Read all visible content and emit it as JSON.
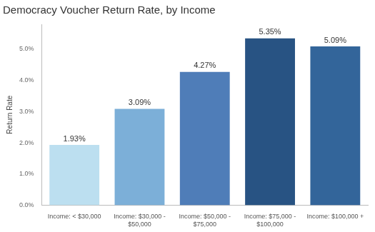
{
  "chart_data": {
    "type": "bar",
    "title": "Democracy Voucher Return Rate, by Income",
    "y_label": "Return Rate",
    "categories": [
      "Income: < $30,000",
      "Income: $30,000 - $50,000",
      "Income: $50,000 - $75,000",
      "Income: $75,000 - $100,000",
      "Income: $100,000 +"
    ],
    "values": [
      1.93,
      3.09,
      4.27,
      5.35,
      5.09
    ],
    "value_labels": [
      "1.93%",
      "3.09%",
      "4.27%",
      "5.35%",
      "5.09%"
    ],
    "colors": [
      "#bcdff0",
      "#7cafd8",
      "#4f7db8",
      "#285383",
      "#33659a"
    ],
    "ylim": [
      0,
      5.8
    ],
    "yticks": [
      {
        "value": 0,
        "label": "0.0%"
      },
      {
        "value": 1,
        "label": "1.0%"
      },
      {
        "value": 2,
        "label": "2.0%"
      },
      {
        "value": 3,
        "label": "3.0%"
      },
      {
        "value": 4,
        "label": "4.0%"
      },
      {
        "value": 5,
        "label": "5.0%"
      }
    ],
    "grid": false,
    "data_labels": true
  }
}
